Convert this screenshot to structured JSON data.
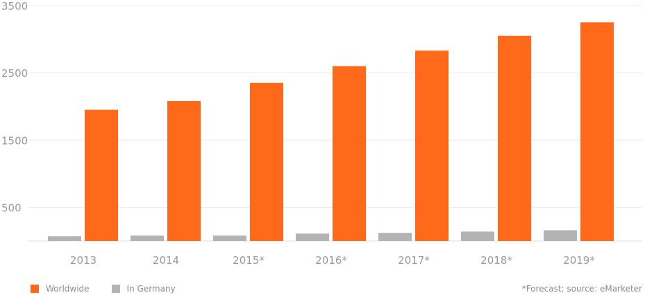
{
  "chart_data": {
    "type": "bar",
    "categories": [
      "2013",
      "2014",
      "2015*",
      "2016*",
      "2017*",
      "2018*",
      "2019*"
    ],
    "series": [
      {
        "name": "Worldwide",
        "color": "#ff6a1a",
        "values": [
          1950,
          2080,
          2350,
          2600,
          2830,
          3050,
          3250
        ]
      },
      {
        "name": "In Germany",
        "color": "#b3b3b3",
        "values": [
          70,
          80,
          80,
          110,
          120,
          140,
          160
        ]
      }
    ],
    "y_ticks": [
      500,
      1500,
      2500,
      3500
    ],
    "ylim": [
      0,
      3500
    ],
    "grid": true,
    "legend_position": "bottom-left"
  },
  "footer": {
    "source": "*Forecast; source: eMarketer"
  }
}
